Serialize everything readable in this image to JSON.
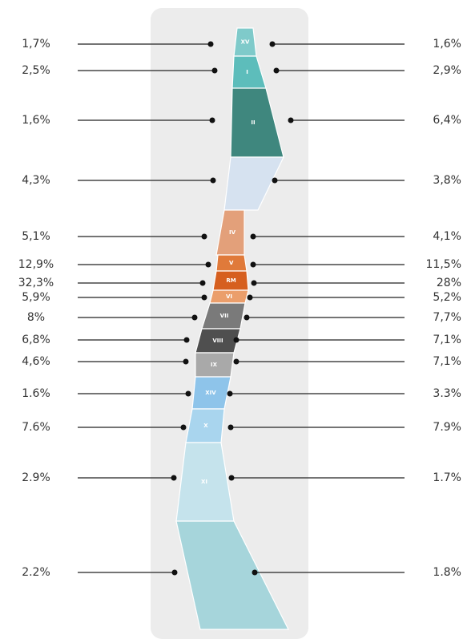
{
  "regions": [
    {
      "label": "XV",
      "left": "1,7%",
      "right": "1,6%",
      "color": "#7fcaca"
    },
    {
      "label": "I",
      "left": "2,5%",
      "right": "2,9%",
      "color": "#5dbdbb"
    },
    {
      "label": "II",
      "left": "1,6%",
      "right": "6,4%",
      "color": "#3f877e"
    },
    {
      "left": "4,3%",
      "right": "3,8%",
      "color": "#d6e2f0"
    },
    {
      "label": "IV",
      "left": "5,1%",
      "right": "4,1%",
      "color": "#e3a07a"
    },
    {
      "label": "V",
      "left": "12,9%",
      "right": "11,5%",
      "color": "#e07a3a"
    },
    {
      "label": "RM",
      "left": "32,3%",
      "right": "28%",
      "color": "#d65f1f"
    },
    {
      "label": "VI",
      "left": "5,9%",
      "right": "5,2%",
      "color": "#eb9e6b"
    },
    {
      "label": "VII",
      "left": "8%",
      "right": "7,7%",
      "color": "#7a7a7a"
    },
    {
      "label": "VIII",
      "left": "6,8%",
      "right": "7,1%",
      "color": "#4f4f4f"
    },
    {
      "label": "IX",
      "left": "4,6%",
      "right": "7,1%",
      "color": "#a9a9a9"
    },
    {
      "label": "XIV",
      "left": "1.6%",
      "right": "3.3%",
      "color": "#8ec4ea"
    },
    {
      "label": "X",
      "left": "7.6%",
      "right": "7.9%",
      "color": "#a9d5ee"
    },
    {
      "label": "XI",
      "left": "2.9%",
      "right": "1.7%",
      "color": "#c5e3ec"
    },
    {
      "left": "2.2%",
      "right": "1.8%",
      "color": "#a6d5db"
    }
  ]
}
